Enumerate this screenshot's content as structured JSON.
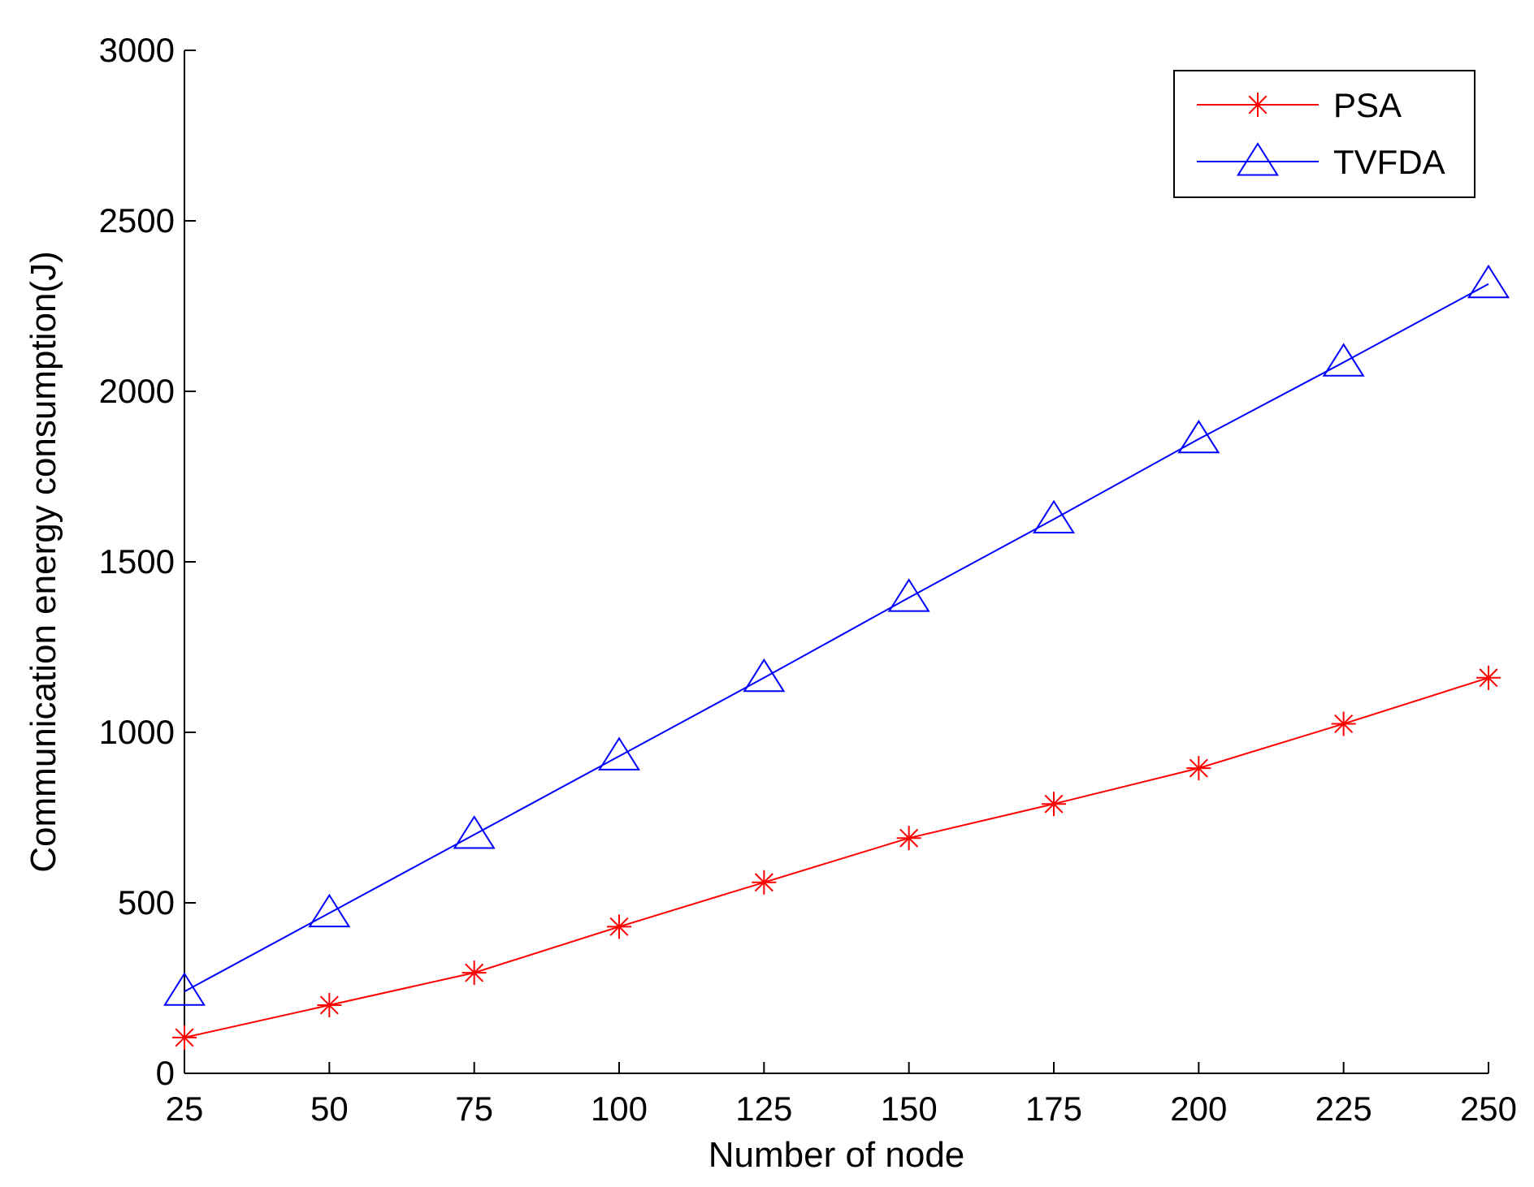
{
  "chart_data": {
    "type": "line",
    "xlabel": "Number of node",
    "ylabel": "Communication energy consumption(J)",
    "x": [
      25,
      50,
      75,
      100,
      125,
      150,
      175,
      200,
      225,
      250
    ],
    "xlim": [
      25,
      250
    ],
    "ylim": [
      0,
      3000
    ],
    "xticks": [
      25,
      50,
      75,
      100,
      125,
      150,
      175,
      200,
      225,
      250
    ],
    "yticks": [
      0,
      500,
      1000,
      1500,
      2000,
      2500,
      3000
    ],
    "grid": false,
    "legend_position": "top-right",
    "series": [
      {
        "name": "PSA",
        "color": "#ff0000",
        "marker": "star",
        "values": [
          105,
          200,
          295,
          430,
          560,
          690,
          790,
          895,
          1025,
          1160
        ]
      },
      {
        "name": "TVFDA",
        "color": "#0000ff",
        "marker": "triangle",
        "values": [
          240,
          470,
          700,
          930,
          1160,
          1395,
          1625,
          1860,
          2085,
          2315
        ]
      }
    ]
  }
}
